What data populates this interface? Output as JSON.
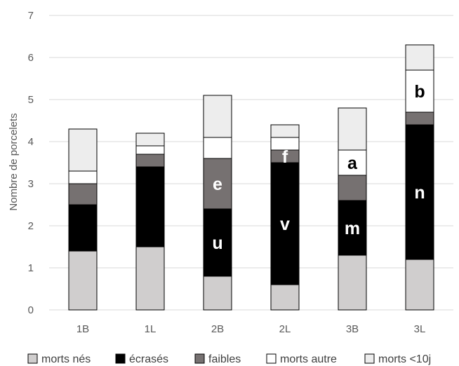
{
  "chart_data": {
    "type": "bar",
    "stacked": true,
    "categories": [
      "1B",
      "1L",
      "2B",
      "2L",
      "3B",
      "3L"
    ],
    "ylabel": "Nombre de porcelets",
    "ylim": [
      0,
      7
    ],
    "yticks": [
      0,
      1,
      2,
      3,
      4,
      5,
      6,
      7
    ],
    "grid": true,
    "legend_position": "bottom",
    "series": [
      {
        "name": "morts nés",
        "color": "#d0cece",
        "values": [
          1.4,
          1.5,
          0.8,
          0.6,
          1.3,
          1.2
        ]
      },
      {
        "name": "écrasés",
        "color": "#000000",
        "values": [
          1.1,
          1.9,
          1.6,
          2.9,
          1.3,
          3.2
        ]
      },
      {
        "name": "faibles",
        "color": "#767171",
        "values": [
          0.5,
          0.3,
          1.2,
          0.3,
          0.6,
          0.3
        ]
      },
      {
        "name": "morts autre",
        "color": "#ffffff",
        "values": [
          0.3,
          0.2,
          0.5,
          0.3,
          0.6,
          1.0
        ]
      },
      {
        "name": "morts <10j",
        "color": "#ededed",
        "values": [
          1.0,
          0.3,
          1.0,
          0.3,
          1.0,
          0.6
        ]
      }
    ],
    "annotations": [
      {
        "text": "e",
        "category": "2B",
        "series": "faibles",
        "color": "#ffffff"
      },
      {
        "text": "u",
        "category": "2B",
        "series": "écrasés",
        "color": "#ffffff"
      },
      {
        "text": "f",
        "category": "2L",
        "series": "faibles",
        "color": "#ffffff"
      },
      {
        "text": "v",
        "category": "2L",
        "series": "écrasés",
        "color": "#ffffff"
      },
      {
        "text": "a",
        "category": "3B",
        "series": "morts autre",
        "color": "#000000"
      },
      {
        "text": "m",
        "category": "3B",
        "series": "écrasés",
        "color": "#ffffff"
      },
      {
        "text": "b",
        "category": "3L",
        "series": "morts autre",
        "color": "#000000"
      },
      {
        "text": "n",
        "category": "3L",
        "series": "écrasés",
        "color": "#ffffff"
      }
    ]
  }
}
